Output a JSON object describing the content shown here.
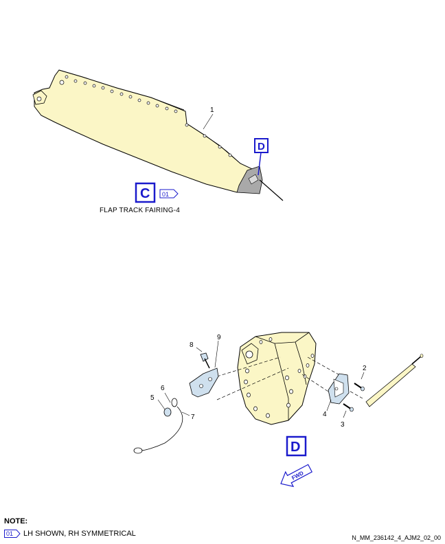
{
  "view_c": {
    "view_label": "C",
    "effectivity_tag": "01",
    "caption": "FLAP TRACK FAIRING-4",
    "callout_1": "1",
    "detail_ref": "D"
  },
  "view_d": {
    "view_label": "D",
    "fwd_label": "FWD",
    "callouts": {
      "c2": "2",
      "c3": "3",
      "c4": "4",
      "c5": "5",
      "c6": "6",
      "c7": "7",
      "c8": "8",
      "c9": "9"
    }
  },
  "notes": {
    "title": "NOTE:",
    "tag": "01",
    "text": "LH SHOWN, RH SYMMETRICAL"
  },
  "document_id": "N_MM_236142_4_AJM2_02_00",
  "colors": {
    "fairing_fill": "#fbf6c6",
    "blue": "#1a1acc",
    "part_fill": "#cfe0ee"
  }
}
